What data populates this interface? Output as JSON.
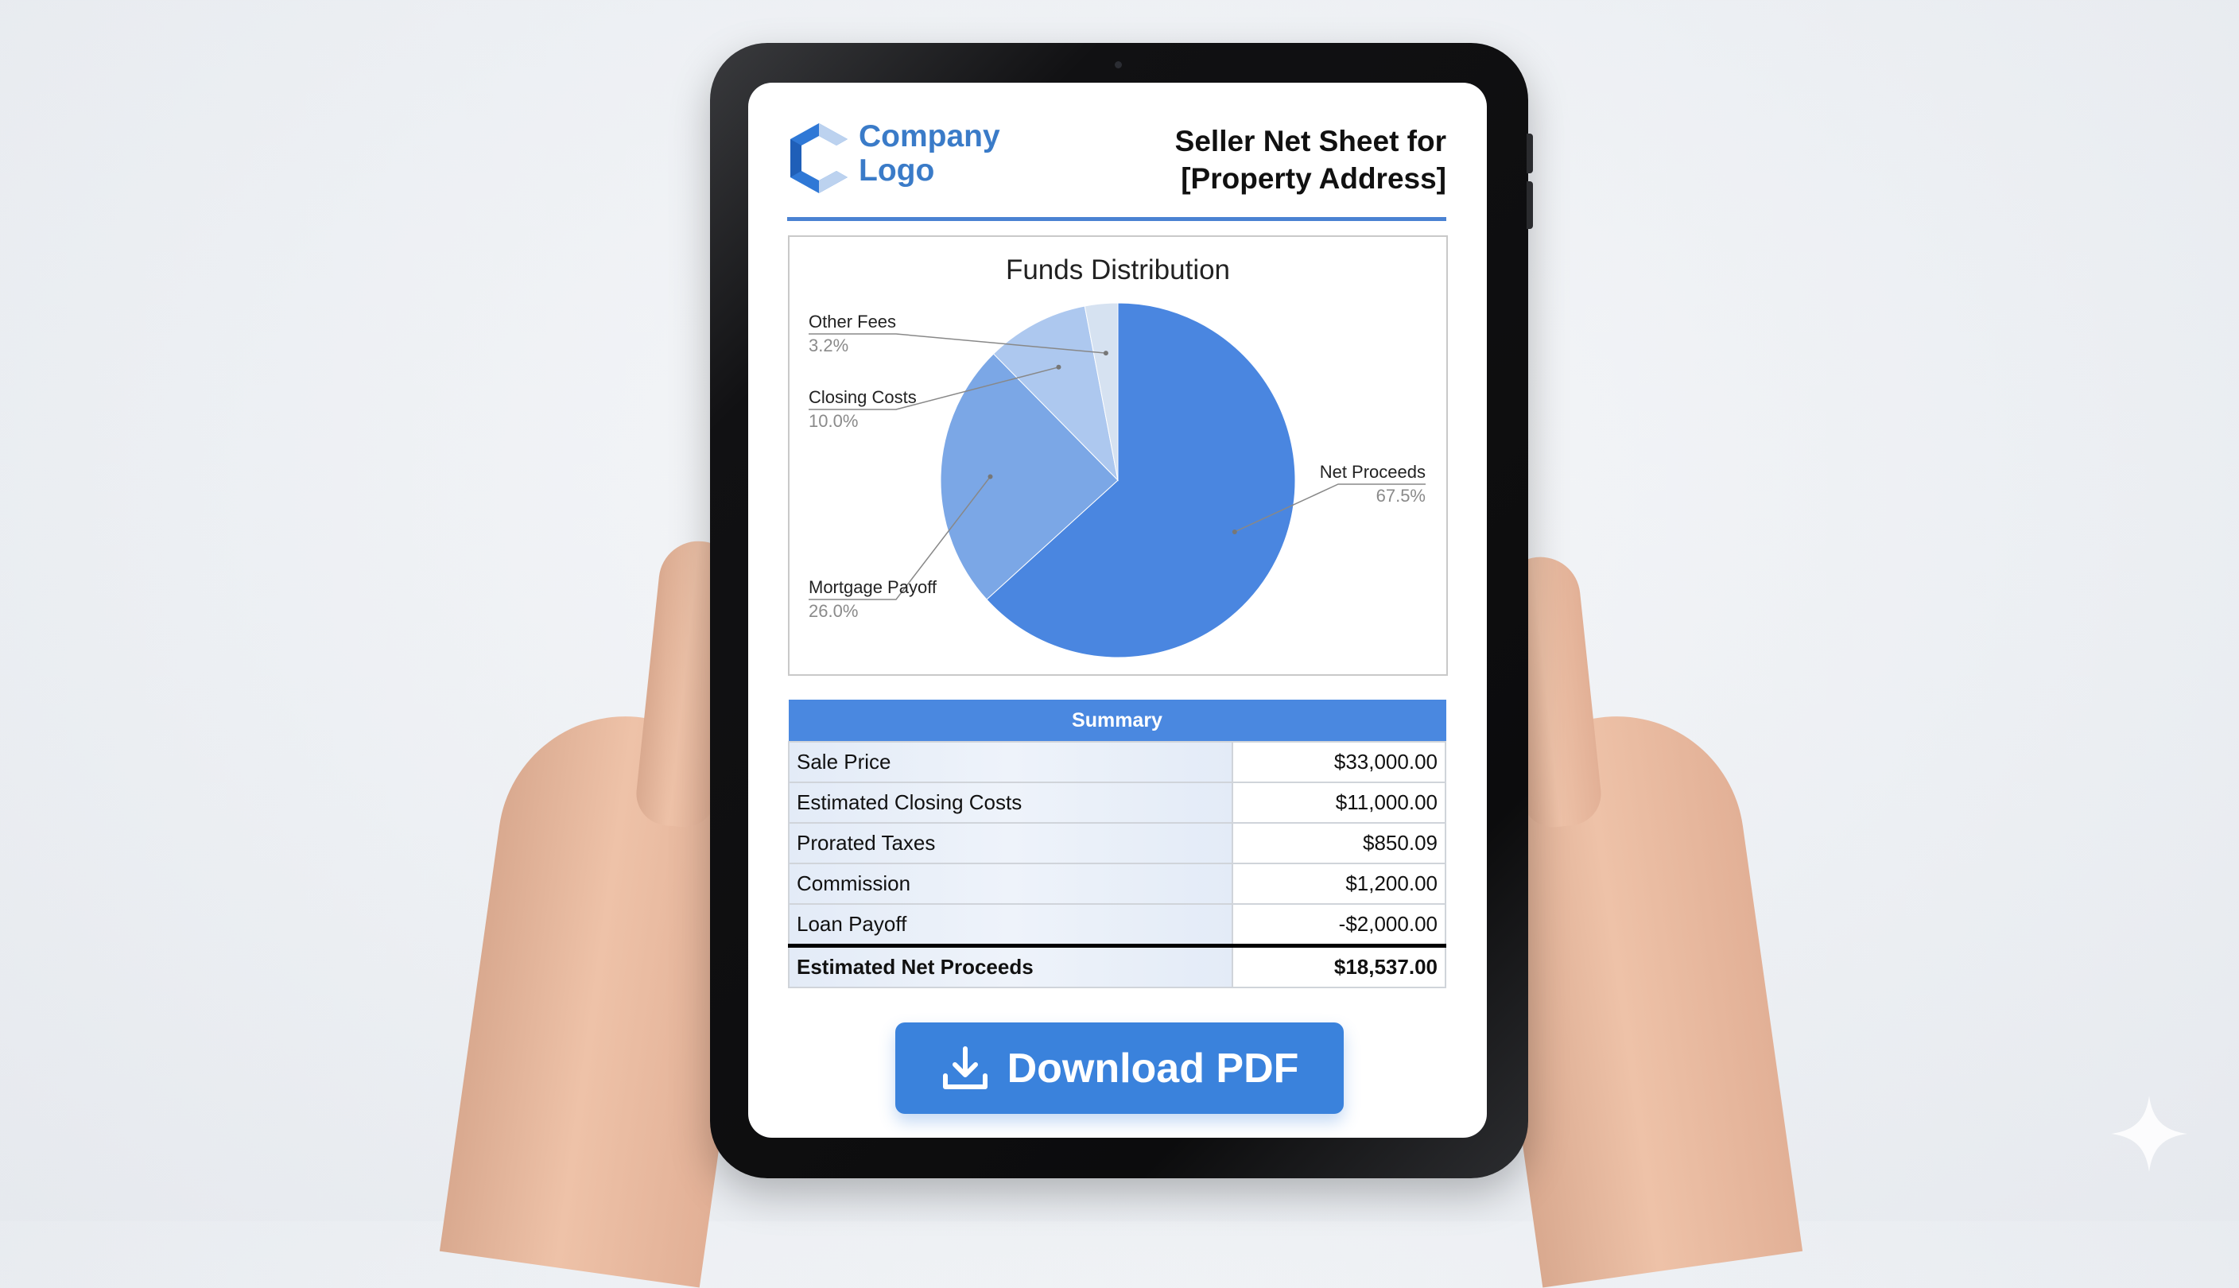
{
  "header": {
    "logo_line1": "Company",
    "logo_line2": "Logo",
    "title_line1": "Seller Net Sheet for",
    "title_line2": "[Property Address]"
  },
  "colors": {
    "accent": "#3a82dc",
    "logo": "#3a7bc8",
    "table_header": "#4a88e0"
  },
  "chart_data": {
    "type": "pie",
    "title": "Funds Distribution",
    "categories": [
      "Net Proceeds",
      "Mortgage Payoff",
      "Closing Costs",
      "Other Fees"
    ],
    "values": [
      67.5,
      26.0,
      10.0,
      3.2
    ],
    "value_labels": [
      "67.5%",
      "26.0%",
      "10.0%",
      "3.2%"
    ],
    "colors": [
      "#4a86e0",
      "#7ba7e6",
      "#adc8ef",
      "#d6e2f1"
    ],
    "legend": "callout labels"
  },
  "summary": {
    "title": "Summary",
    "rows": [
      {
        "label": "Sale Price",
        "value": "$33,000.00"
      },
      {
        "label": "Estimated Closing Costs",
        "value": "$11,000.00"
      },
      {
        "label": "Prorated Taxes",
        "value": "$850.09"
      },
      {
        "label": "Commission",
        "value": "$1,200.00"
      },
      {
        "label": "Loan Payoff",
        "value": "-$2,000.00"
      }
    ],
    "total": {
      "label": "Estimated Net Proceeds",
      "value": "$18,537.00"
    }
  },
  "download": {
    "label": "Download PDF",
    "icon": "download-icon"
  }
}
